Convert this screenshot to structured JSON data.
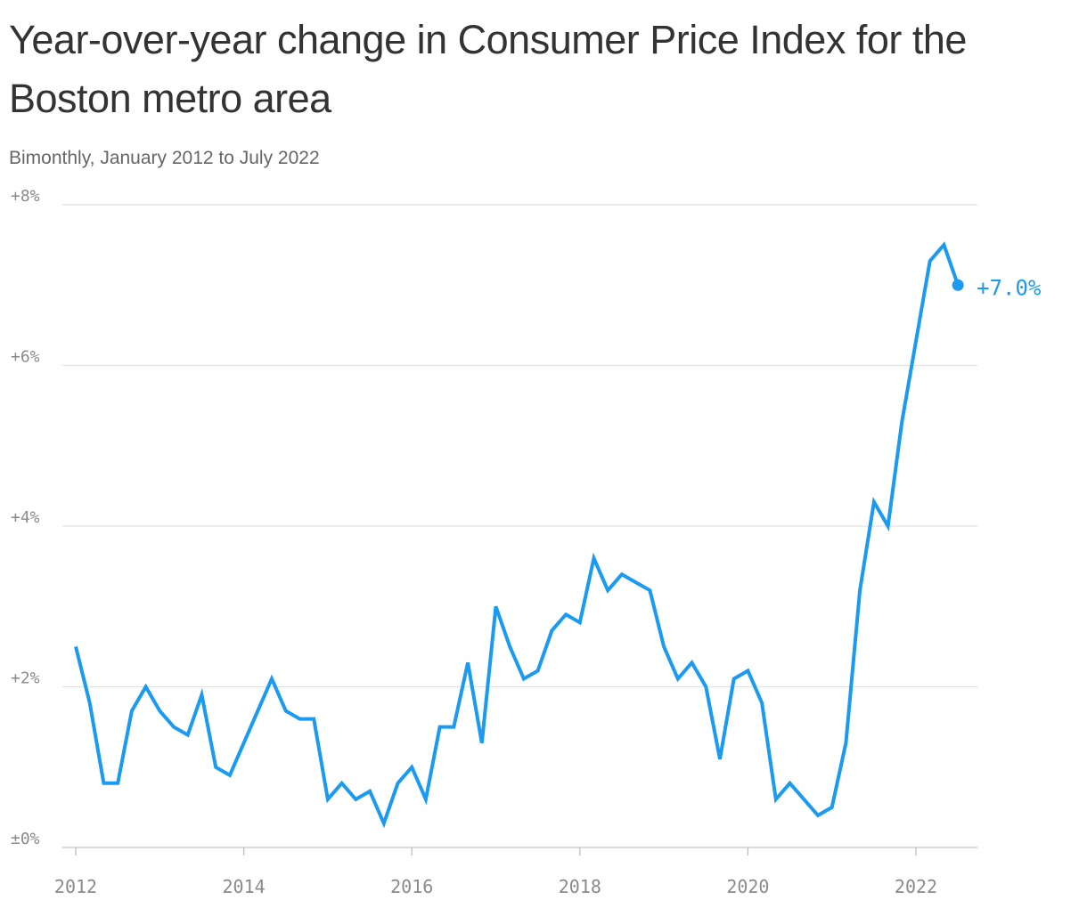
{
  "chart_data": {
    "type": "line",
    "title": "Year-over-year change in Consumer Price Index for the Boston metro area",
    "subtitle": "Bimonthly, January 2012 to July 2022",
    "x_unit": "year",
    "y_unit": "percent",
    "ylim": [
      0,
      8
    ],
    "xlim": [
      2012,
      2022.6
    ],
    "y_ticks": [
      {
        "value": 8,
        "label": "+8%"
      },
      {
        "value": 6,
        "label": "+6%"
      },
      {
        "value": 4,
        "label": "+4%"
      },
      {
        "value": 2,
        "label": "+2%"
      },
      {
        "value": 0,
        "label": "±0%"
      }
    ],
    "x_ticks": [
      {
        "value": 2012,
        "label": "2012"
      },
      {
        "value": 2014,
        "label": "2014"
      },
      {
        "value": 2016,
        "label": "2016"
      },
      {
        "value": 2018,
        "label": "2018"
      },
      {
        "value": 2020,
        "label": "2020"
      },
      {
        "value": 2022,
        "label": "2022"
      }
    ],
    "grid": true,
    "line_color": "#1a9af0",
    "end_label": "+7.0%",
    "series": [
      {
        "points": [
          {
            "x": "2012-01",
            "y": 2.5
          },
          {
            "x": "2012-03",
            "y": 1.8
          },
          {
            "x": "2012-05",
            "y": 0.8
          },
          {
            "x": "2012-07",
            "y": 0.8
          },
          {
            "x": "2012-09",
            "y": 1.7
          },
          {
            "x": "2012-11",
            "y": 2.0
          },
          {
            "x": "2013-01",
            "y": 1.7
          },
          {
            "x": "2013-03",
            "y": 1.5
          },
          {
            "x": "2013-05",
            "y": 1.4
          },
          {
            "x": "2013-07",
            "y": 1.9
          },
          {
            "x": "2013-09",
            "y": 1.0
          },
          {
            "x": "2013-11",
            "y": 0.9
          },
          {
            "x": "2014-01",
            "y": 1.3
          },
          {
            "x": "2014-03",
            "y": 1.7
          },
          {
            "x": "2014-05",
            "y": 2.1
          },
          {
            "x": "2014-07",
            "y": 1.7
          },
          {
            "x": "2014-09",
            "y": 1.6
          },
          {
            "x": "2014-11",
            "y": 1.6
          },
          {
            "x": "2015-01",
            "y": 0.6
          },
          {
            "x": "2015-03",
            "y": 0.8
          },
          {
            "x": "2015-05",
            "y": 0.6
          },
          {
            "x": "2015-07",
            "y": 0.7
          },
          {
            "x": "2015-09",
            "y": 0.3
          },
          {
            "x": "2015-11",
            "y": 0.8
          },
          {
            "x": "2016-01",
            "y": 1.0
          },
          {
            "x": "2016-03",
            "y": 0.6
          },
          {
            "x": "2016-05",
            "y": 1.5
          },
          {
            "x": "2016-07",
            "y": 1.5
          },
          {
            "x": "2016-09",
            "y": 2.3
          },
          {
            "x": "2016-11",
            "y": 1.3
          },
          {
            "x": "2017-01",
            "y": 3.0
          },
          {
            "x": "2017-03",
            "y": 2.5
          },
          {
            "x": "2017-05",
            "y": 2.1
          },
          {
            "x": "2017-07",
            "y": 2.2
          },
          {
            "x": "2017-09",
            "y": 2.7
          },
          {
            "x": "2017-11",
            "y": 2.9
          },
          {
            "x": "2018-01",
            "y": 2.8
          },
          {
            "x": "2018-03",
            "y": 3.6
          },
          {
            "x": "2018-05",
            "y": 3.2
          },
          {
            "x": "2018-07",
            "y": 3.4
          },
          {
            "x": "2018-09",
            "y": 3.3
          },
          {
            "x": "2018-11",
            "y": 3.2
          },
          {
            "x": "2019-01",
            "y": 2.5
          },
          {
            "x": "2019-03",
            "y": 2.1
          },
          {
            "x": "2019-05",
            "y": 2.3
          },
          {
            "x": "2019-07",
            "y": 2.0
          },
          {
            "x": "2019-09",
            "y": 1.1
          },
          {
            "x": "2019-11",
            "y": 2.1
          },
          {
            "x": "2020-01",
            "y": 2.2
          },
          {
            "x": "2020-03",
            "y": 1.8
          },
          {
            "x": "2020-05",
            "y": 0.6
          },
          {
            "x": "2020-07",
            "y": 0.8
          },
          {
            "x": "2020-09",
            "y": 0.6
          },
          {
            "x": "2020-11",
            "y": 0.4
          },
          {
            "x": "2021-01",
            "y": 0.5
          },
          {
            "x": "2021-03",
            "y": 1.3
          },
          {
            "x": "2021-05",
            "y": 3.2
          },
          {
            "x": "2021-07",
            "y": 4.3
          },
          {
            "x": "2021-09",
            "y": 4.0
          },
          {
            "x": "2021-11",
            "y": 5.3
          },
          {
            "x": "2022-01",
            "y": 6.3
          },
          {
            "x": "2022-03",
            "y": 7.3
          },
          {
            "x": "2022-05",
            "y": 7.5
          },
          {
            "x": "2022-07",
            "y": 7.0
          }
        ]
      }
    ]
  }
}
